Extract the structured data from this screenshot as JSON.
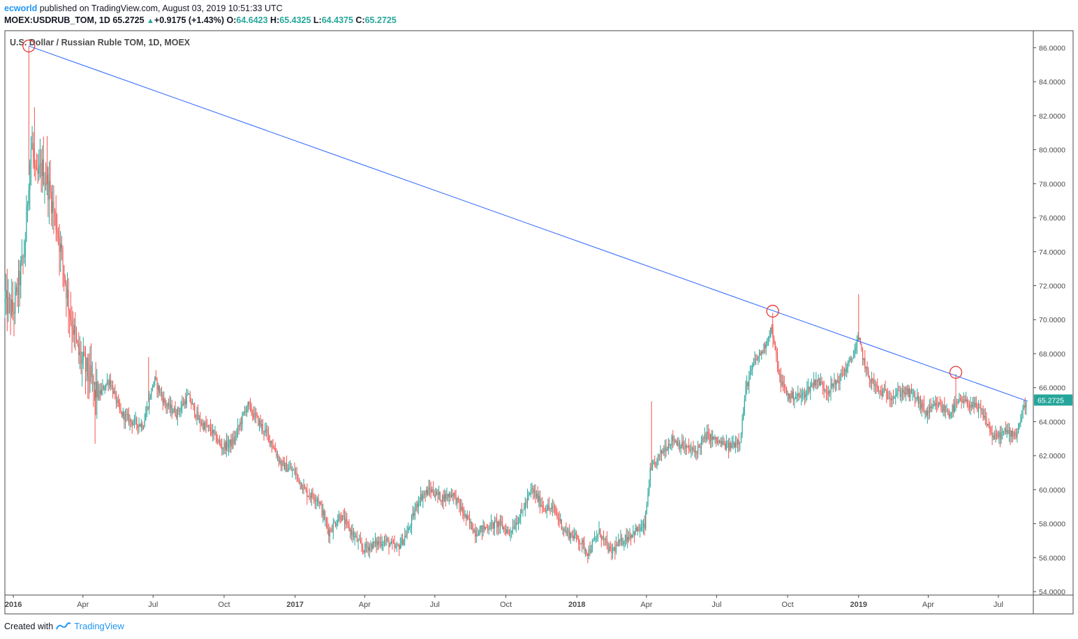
{
  "header": {
    "user": "ecworld",
    "published_text": "published on TradingView.com, August 03, 2019 10:51:33 UTC",
    "symbol": "MOEX:USDRUB_TOM, 1D",
    "last": "65.2725",
    "change": "+0.9175 (+1.43%)",
    "o_label": "O:",
    "o_value": "64.6423",
    "h_label": "H:",
    "h_value": "65.4325",
    "l_label": "L:",
    "l_value": "64.4375",
    "c_label": "C:",
    "c_value": "65.2725"
  },
  "footer": {
    "created_with": "Created with",
    "brand": "TradingView"
  },
  "colors": {
    "up": "#26a69a",
    "down": "#ef5350",
    "trendline": "#2962ff",
    "circle": "#e53935",
    "price_tag": "#26a69a"
  },
  "chart_data": {
    "type": "candlestick",
    "title": "U.S. Dollar / Russian Ruble TOM, 1D, MOEX",
    "ylim": [
      53.8,
      87.0
    ],
    "xlim": [
      2015.97,
      2019.62
    ],
    "y_ticks": [
      "54.0000",
      "56.0000",
      "58.0000",
      "60.0000",
      "62.0000",
      "64.0000",
      "66.0000",
      "68.0000",
      "70.0000",
      "72.0000",
      "74.0000",
      "76.0000",
      "78.0000",
      "80.0000",
      "82.0000",
      "84.0000",
      "86.0000"
    ],
    "x_ticks": [
      {
        "label": "2016",
        "t": 2016.0
      },
      {
        "label": "Apr",
        "t": 2016.247
      },
      {
        "label": "Jul",
        "t": 2016.496
      },
      {
        "label": "Oct",
        "t": 2016.748
      },
      {
        "label": "2017",
        "t": 2017.0
      },
      {
        "label": "Apr",
        "t": 2017.247
      },
      {
        "label": "Jul",
        "t": 2017.496
      },
      {
        "label": "Oct",
        "t": 2017.748
      },
      {
        "label": "2018",
        "t": 2018.0
      },
      {
        "label": "Apr",
        "t": 2018.247
      },
      {
        "label": "Jul",
        "t": 2018.496
      },
      {
        "label": "Oct",
        "t": 2018.748
      },
      {
        "label": "2019",
        "t": 2019.0
      },
      {
        "label": "Apr",
        "t": 2019.247
      },
      {
        "label": "Jul",
        "t": 2019.496
      }
    ],
    "price_path": [
      [
        2015.97,
        71.0
      ],
      [
        2016.0,
        70.5
      ],
      [
        2016.04,
        74.0
      ],
      [
        2016.055,
        78.5
      ],
      [
        2016.065,
        80.5
      ],
      [
        2016.08,
        78.0
      ],
      [
        2016.1,
        79.0
      ],
      [
        2016.13,
        77.5
      ],
      [
        2016.16,
        75.0
      ],
      [
        2016.2,
        70.5
      ],
      [
        2016.23,
        68.0
      ],
      [
        2016.26,
        67.0
      ],
      [
        2016.3,
        65.5
      ],
      [
        2016.34,
        66.5
      ],
      [
        2016.38,
        64.5
      ],
      [
        2016.42,
        64.0
      ],
      [
        2016.46,
        63.8
      ],
      [
        2016.5,
        66.5
      ],
      [
        2016.54,
        65.0
      ],
      [
        2016.58,
        64.5
      ],
      [
        2016.62,
        65.5
      ],
      [
        2016.66,
        64.0
      ],
      [
        2016.7,
        63.5
      ],
      [
        2016.74,
        62.5
      ],
      [
        2016.78,
        62.8
      ],
      [
        2016.83,
        65.0
      ],
      [
        2016.87,
        64.0
      ],
      [
        2016.91,
        63.0
      ],
      [
        2016.95,
        61.5
      ],
      [
        2017.0,
        61.0
      ],
      [
        2017.04,
        59.8
      ],
      [
        2017.08,
        59.5
      ],
      [
        2017.12,
        57.5
      ],
      [
        2017.16,
        58.5
      ],
      [
        2017.2,
        57.5
      ],
      [
        2017.24,
        56.5
      ],
      [
        2017.28,
        56.8
      ],
      [
        2017.32,
        57.0
      ],
      [
        2017.36,
        56.5
      ],
      [
        2017.4,
        57.5
      ],
      [
        2017.44,
        59.5
      ],
      [
        2017.48,
        60.0
      ],
      [
        2017.52,
        59.5
      ],
      [
        2017.56,
        59.8
      ],
      [
        2017.6,
        58.5
      ],
      [
        2017.64,
        57.5
      ],
      [
        2017.68,
        57.8
      ],
      [
        2017.72,
        58.0
      ],
      [
        2017.76,
        57.5
      ],
      [
        2017.8,
        58.5
      ],
      [
        2017.84,
        60.0
      ],
      [
        2017.88,
        59.0
      ],
      [
        2017.92,
        58.8
      ],
      [
        2017.96,
        57.5
      ],
      [
        2018.0,
        57.2
      ],
      [
        2018.04,
        56.3
      ],
      [
        2018.08,
        57.5
      ],
      [
        2018.12,
        56.3
      ],
      [
        2018.16,
        57.0
      ],
      [
        2018.2,
        57.5
      ],
      [
        2018.24,
        57.8
      ],
      [
        2018.26,
        61.0
      ],
      [
        2018.3,
        62.2
      ],
      [
        2018.34,
        63.0
      ],
      [
        2018.38,
        62.5
      ],
      [
        2018.42,
        62.2
      ],
      [
        2018.46,
        63.2
      ],
      [
        2018.5,
        62.8
      ],
      [
        2018.54,
        62.5
      ],
      [
        2018.58,
        63.0
      ],
      [
        2018.6,
        66.0
      ],
      [
        2018.63,
        67.5
      ],
      [
        2018.66,
        68.2
      ],
      [
        2018.69,
        69.5
      ],
      [
        2018.72,
        66.5
      ],
      [
        2018.75,
        65.5
      ],
      [
        2018.8,
        65.5
      ],
      [
        2018.85,
        66.5
      ],
      [
        2018.89,
        65.8
      ],
      [
        2018.93,
        66.5
      ],
      [
        2018.97,
        67.5
      ],
      [
        2019.0,
        68.8
      ],
      [
        2019.03,
        66.8
      ],
      [
        2019.07,
        65.8
      ],
      [
        2019.12,
        65.5
      ],
      [
        2019.16,
        65.8
      ],
      [
        2019.2,
        65.5
      ],
      [
        2019.24,
        64.5
      ],
      [
        2019.28,
        65.0
      ],
      [
        2019.32,
        64.5
      ],
      [
        2019.36,
        65.2
      ],
      [
        2019.4,
        65.0
      ],
      [
        2019.44,
        64.5
      ],
      [
        2019.48,
        63.0
      ],
      [
        2019.52,
        63.4
      ],
      [
        2019.56,
        63.3
      ],
      [
        2019.595,
        65.27
      ]
    ],
    "spikes": [
      {
        "t": 2016.055,
        "high": 86.1
      },
      {
        "t": 2016.075,
        "high": 82.5
      },
      {
        "t": 2016.12,
        "high": 80.8
      },
      {
        "t": 2016.29,
        "low": 62.7
      },
      {
        "t": 2016.48,
        "high": 67.8
      },
      {
        "t": 2018.265,
        "high": 65.2
      },
      {
        "t": 2018.695,
        "high": 70.4
      },
      {
        "t": 2019.0,
        "high": 71.5
      },
      {
        "t": 2019.345,
        "high": 66.8
      }
    ],
    "trendline": [
      [
        2016.055,
        86.1
      ],
      [
        2019.6,
        65.2
      ]
    ],
    "marked_points": [
      [
        2016.055,
        86.1
      ],
      [
        2018.695,
        70.5
      ],
      [
        2019.345,
        66.9
      ]
    ],
    "last_price": "65.2725",
    "last_value": 65.2725
  }
}
